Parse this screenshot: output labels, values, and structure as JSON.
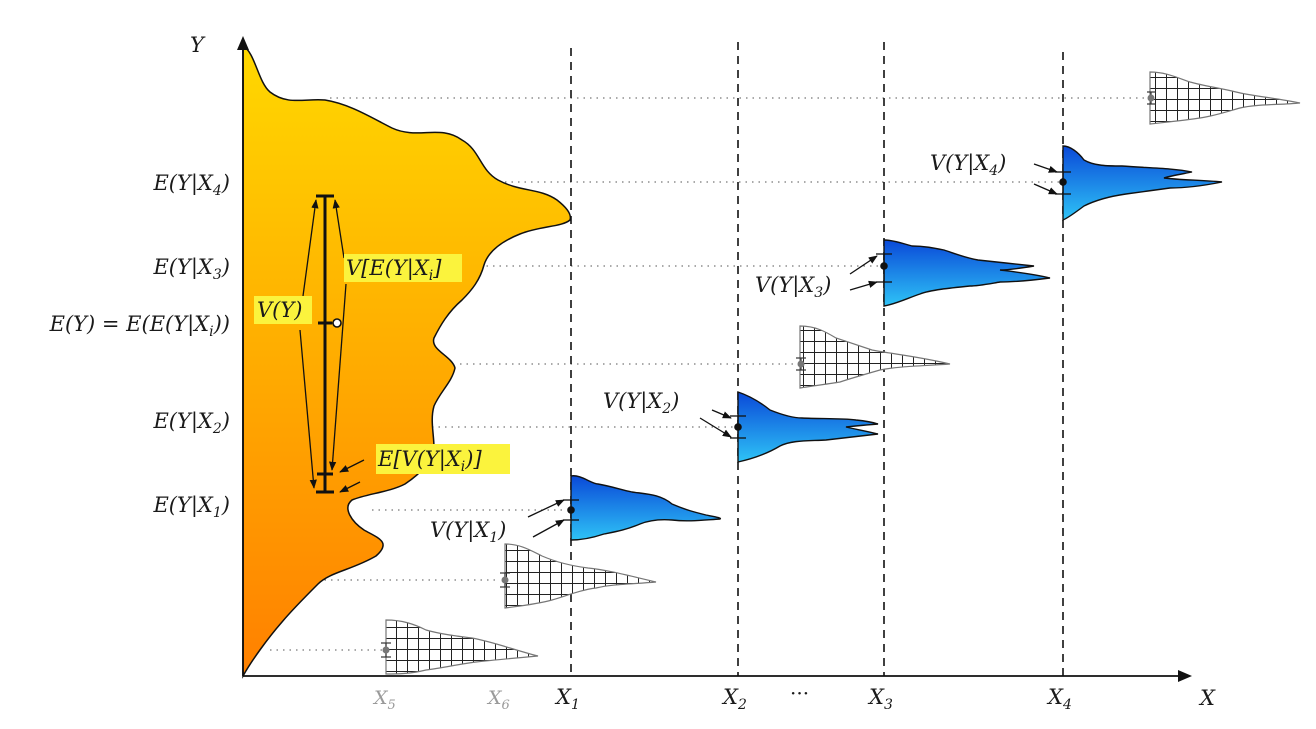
{
  "axes": {
    "x_label": "X",
    "y_label": "Y"
  },
  "x_ticks": [
    {
      "label": "X",
      "sub": "5",
      "muted": true
    },
    {
      "label": "X",
      "sub": "6",
      "muted": true
    },
    {
      "label": "X",
      "sub": "1",
      "muted": false
    },
    {
      "label": "X",
      "sub": "2",
      "muted": false
    },
    {
      "label": "X",
      "sub": "3",
      "muted": false
    },
    {
      "label": "X",
      "sub": "4",
      "muted": false
    }
  ],
  "x_ellipsis": "···",
  "y_ticks": [
    {
      "pre": "E(Y|X",
      "sub": "4",
      "post": ")"
    },
    {
      "pre": "E(Y|X",
      "sub": "3",
      "post": ")"
    },
    {
      "pre": "E(Y) = E(E(Y|X",
      "sub": "i",
      "post": "))"
    },
    {
      "pre": "E(Y|X",
      "sub": "2",
      "post": ")"
    },
    {
      "pre": "E(Y|X",
      "sub": "1",
      "post": ")"
    }
  ],
  "annotations": {
    "total_variance": "V(Y)",
    "between": {
      "pre": "V[E(Y|X",
      "sub": "i",
      "post": "]"
    },
    "within": {
      "pre": "E[V(Y|X",
      "sub": "i",
      "post": ")]"
    },
    "conditional_variances": [
      {
        "pre": "V(Y|X",
        "sub": "1",
        "post": ")"
      },
      {
        "pre": "V(Y|X",
        "sub": "2",
        "post": ")"
      },
      {
        "pre": "V(Y|X",
        "sub": "3",
        "post": ")"
      },
      {
        "pre": "V(Y|X",
        "sub": "4",
        "post": ")"
      }
    ]
  },
  "colors": {
    "marginal_top": "#ffd800",
    "marginal_bottom": "#ff8000",
    "conditional_top": "#0a49d8",
    "conditional_bottom": "#2ec3f6",
    "highlight": "#fbf33d",
    "muted_label": "#9a9a9a"
  }
}
